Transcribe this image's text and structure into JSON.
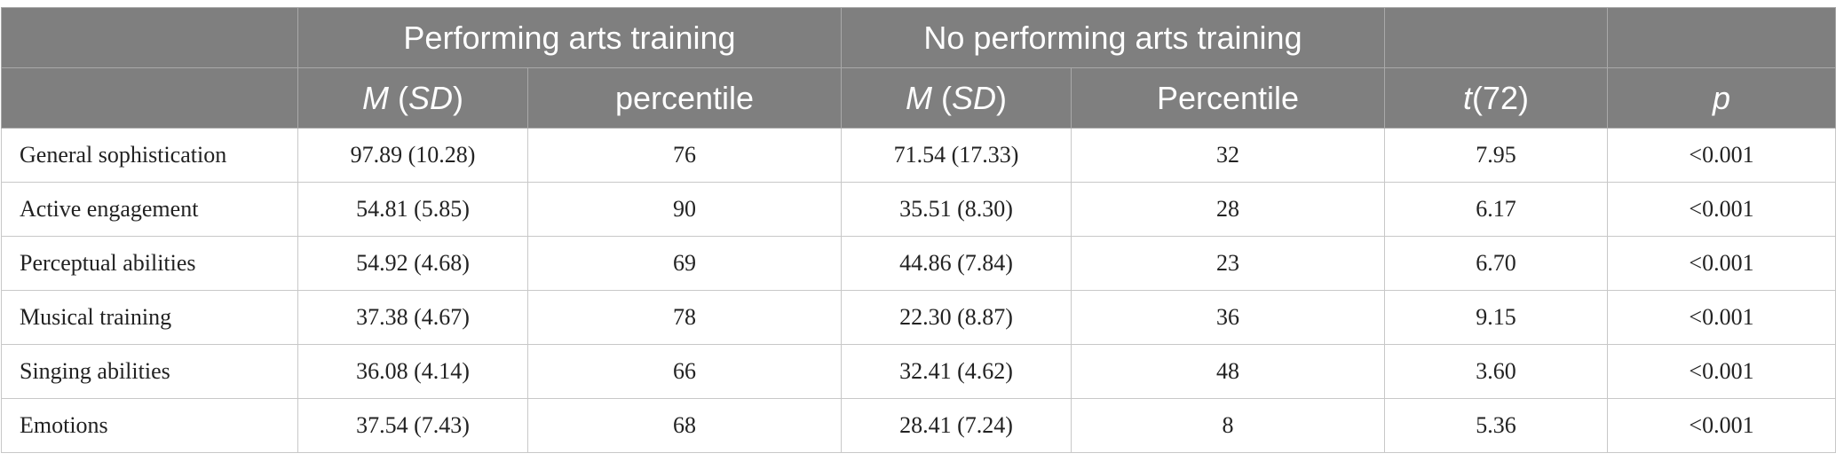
{
  "header": {
    "group_1": "Performing arts training",
    "group_2": "No performing arts training",
    "col_m": "M",
    "col_sd": "SD",
    "col_percentile_1": "percentile",
    "col_percentile_2": "Percentile",
    "col_t_letter": "t",
    "col_t_df": "(72)",
    "col_p": "p"
  },
  "rows": [
    {
      "label": "General sophistication",
      "pat_msd": "97.89 (10.28)",
      "pat_pct": "76",
      "npat_msd": "71.54 (17.33)",
      "npat_pct": "32",
      "t": "7.95",
      "p": "<0.001"
    },
    {
      "label": "Active engagement",
      "pat_msd": "54.81 (5.85)",
      "pat_pct": "90",
      "npat_msd": "35.51 (8.30)",
      "npat_pct": "28",
      "t": "6.17",
      "p": "<0.001"
    },
    {
      "label": "Perceptual abilities",
      "pat_msd": "54.92 (4.68)",
      "pat_pct": "69",
      "npat_msd": "44.86 (7.84)",
      "npat_pct": "23",
      "t": "6.70",
      "p": "<0.001"
    },
    {
      "label": "Musical training",
      "pat_msd": "37.38 (4.67)",
      "pat_pct": "78",
      "npat_msd": "22.30 (8.87)",
      "npat_pct": "36",
      "t": "9.15",
      "p": "<0.001"
    },
    {
      "label": "Singing abilities",
      "pat_msd": "36.08 (4.14)",
      "pat_pct": "66",
      "npat_msd": "32.41 (4.62)",
      "npat_pct": "48",
      "t": "3.60",
      "p": "<0.001"
    },
    {
      "label": "Emotions",
      "pat_msd": "37.54 (7.43)",
      "pat_pct": "68",
      "npat_msd": "28.41 (7.24)",
      "npat_pct": "8",
      "t": "5.36",
      "p": "<0.001"
    }
  ]
}
